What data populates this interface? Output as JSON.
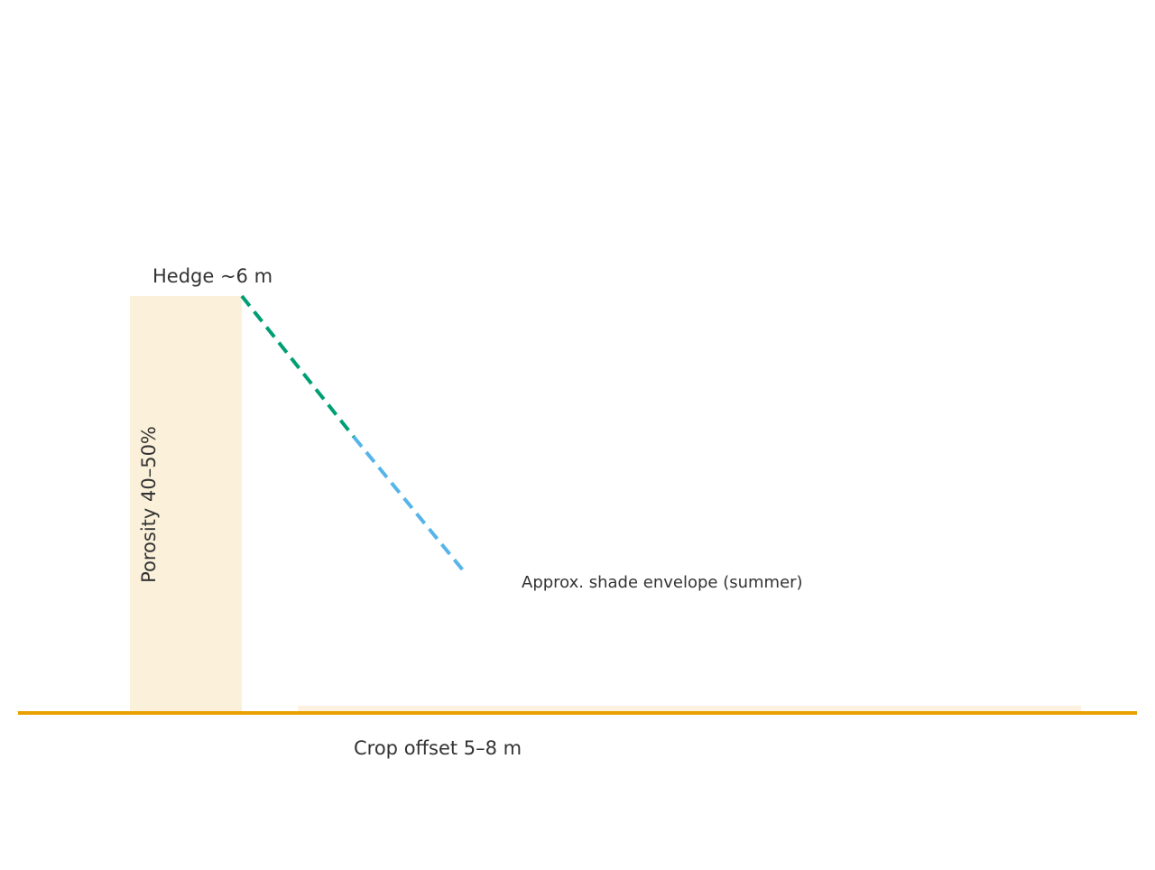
{
  "labels": {
    "hedge": "Hedge ~6 m",
    "porosity": "Porosity 40–50%",
    "shade": "Approx. shade envelope (summer)",
    "crop_offset": "Crop offset 5–8 m"
  },
  "colors": {
    "hedge_fill": "#FBF0DA",
    "crop_strip": "#FDF1E0",
    "ground": "#E8A000",
    "shade_line_upper": "#009E73",
    "shade_line_lower": "#56B4E9",
    "text": "#333333"
  }
}
